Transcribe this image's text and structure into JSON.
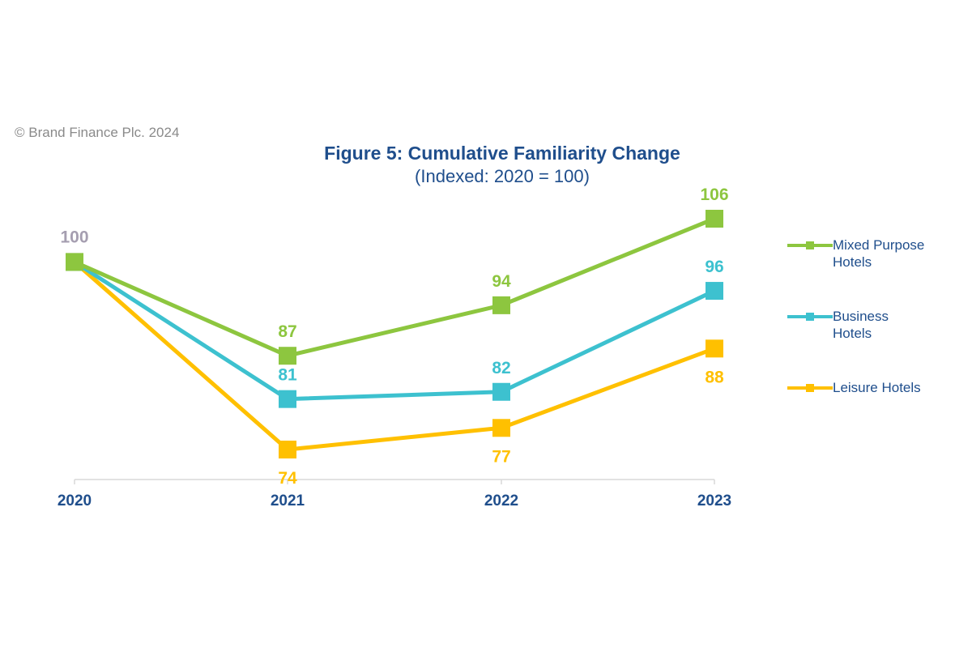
{
  "copyright": "© Brand Finance Plc. 2024",
  "chart_data": {
    "type": "line",
    "title": "Figure 5: Cumulative Familiarity Change",
    "subtitle": "(Indexed: 2020 = 100)",
    "categories": [
      "2020",
      "2021",
      "2022",
      "2023"
    ],
    "ylim": [
      65,
      110
    ],
    "grid": false,
    "legend_position": "right",
    "start_label": "100",
    "start_label_color": "#a59eb0",
    "series": [
      {
        "name": "Mixed Purpose Hotels",
        "values": [
          100,
          87,
          94,
          106
        ],
        "labels": [
          "100",
          "87",
          "94",
          "106"
        ],
        "label_position": "above",
        "color": "#8dc63f"
      },
      {
        "name": "Business Hotels",
        "values": [
          100,
          81,
          82,
          96
        ],
        "labels": [
          "100",
          "81",
          "82",
          "96"
        ],
        "label_position": "above",
        "color": "#3dc1cf"
      },
      {
        "name": "Leisure Hotels",
        "values": [
          100,
          74,
          77,
          88
        ],
        "labels": [
          "100",
          "74",
          "77",
          "88"
        ],
        "label_position": "below",
        "color": "#ffc000"
      }
    ],
    "axis_label_color": "#1f4e8c",
    "legend": [
      {
        "line1": "Mixed Purpose",
        "line2": "Hotels"
      },
      {
        "line1": "Business",
        "line2": "Hotels"
      },
      {
        "line1": "Leisure Hotels",
        "line2": ""
      }
    ]
  }
}
